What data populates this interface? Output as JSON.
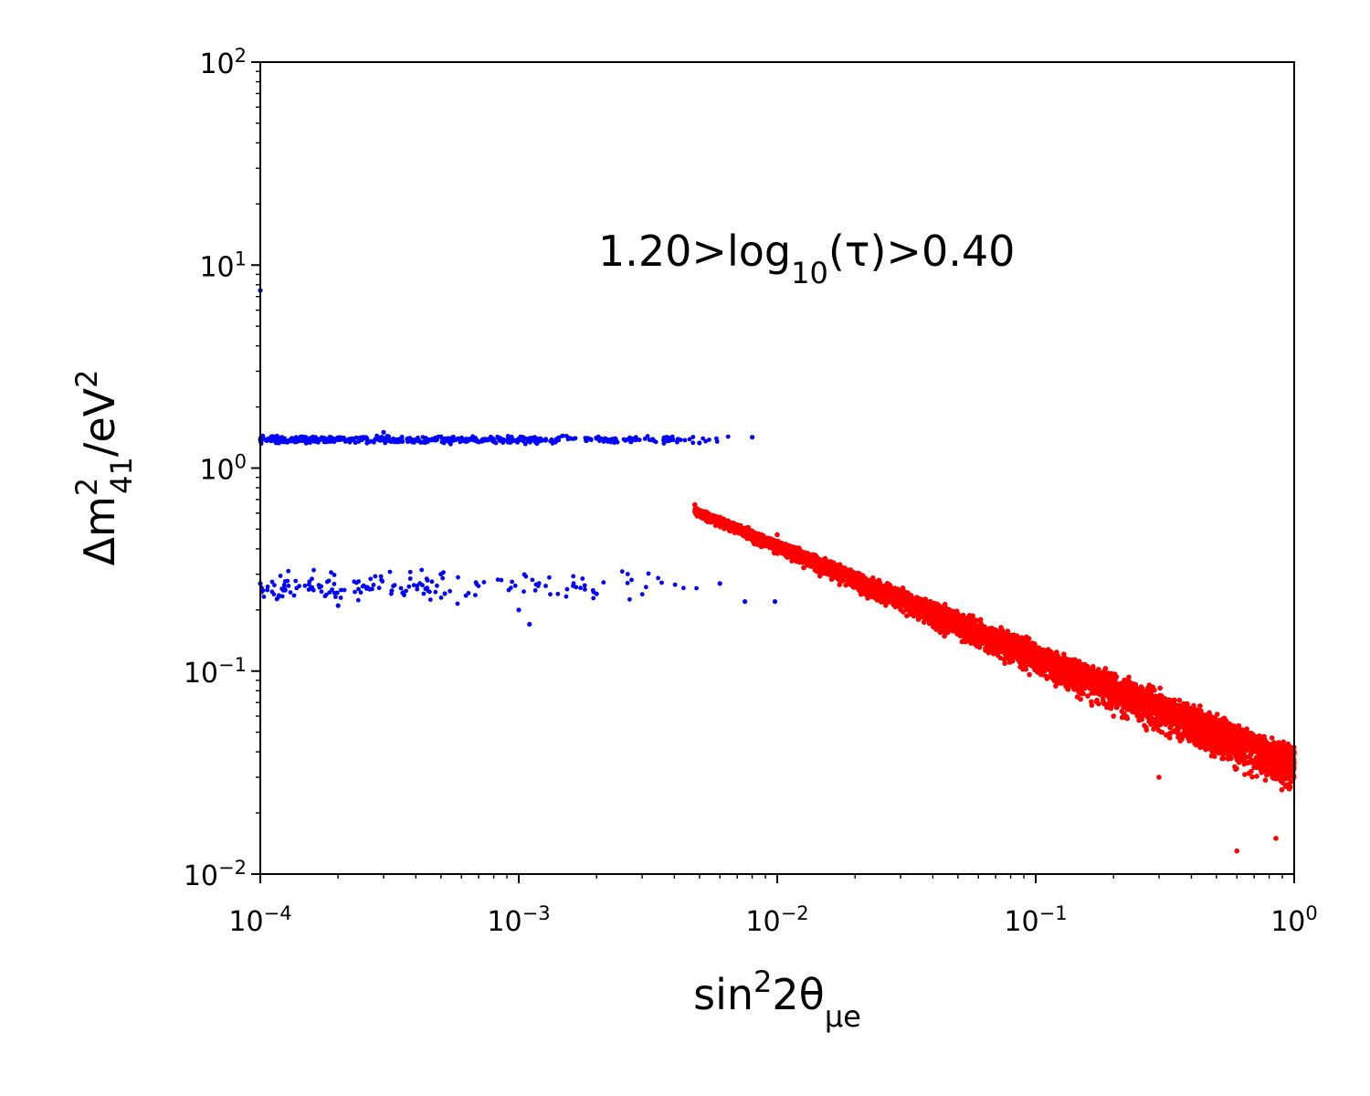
{
  "chart_data": {
    "type": "scatter",
    "x_scale": "log",
    "y_scale": "log",
    "xlim": [
      0.0001,
      1
    ],
    "ylim": [
      0.01,
      100
    ],
    "xticks": [
      {
        "base": "10",
        "exp": "−4",
        "value": 0.0001
      },
      {
        "base": "10",
        "exp": "−3",
        "value": 0.001
      },
      {
        "base": "10",
        "exp": "−2",
        "value": 0.01
      },
      {
        "base": "10",
        "exp": "−1",
        "value": 0.1
      },
      {
        "base": "10",
        "exp": "0",
        "value": 1
      }
    ],
    "yticks": [
      {
        "base": "10",
        "exp": "−2",
        "value": 0.01
      },
      {
        "base": "10",
        "exp": "−1",
        "value": 0.1
      },
      {
        "base": "10",
        "exp": "0",
        "value": 1
      },
      {
        "base": "10",
        "exp": "1",
        "value": 10
      },
      {
        "base": "10",
        "exp": "2",
        "value": 100
      }
    ],
    "xlabel": {
      "main": "sin",
      "sup": "2",
      "rest": "2θ",
      "sub": "μe"
    },
    "ylabel": {
      "pre": "Δm",
      "sup": "2",
      "sub": "41",
      "mid": "/eV",
      "sup2": "2"
    },
    "annotation": {
      "pre": "1.20>log",
      "sub": "10",
      "post": "(τ)>0.40"
    },
    "grid": false,
    "legend": "none",
    "series": [
      {
        "color": "#0000ff",
        "cluster_bands": [
          {
            "x_range": [
              0.0001,
              0.008
            ],
            "y_center": 1.38,
            "y_spread": 0.06
          },
          {
            "x_range": [
              0.0001,
              0.01
            ],
            "y_center": 0.26,
            "y_spread": 0.12
          }
        ],
        "points": [
          [
            0.0001,
            7.5
          ],
          [
            0.0001,
            1.38
          ],
          [
            0.00015,
            1.42
          ],
          [
            0.0003,
            1.5
          ],
          [
            0.0008,
            1.35
          ],
          [
            0.002,
            1.4
          ],
          [
            0.005,
            1.33
          ],
          [
            0.008,
            1.42
          ],
          [
            0.0001,
            0.27
          ],
          [
            0.0002,
            0.21
          ],
          [
            0.0005,
            0.3
          ],
          [
            0.001,
            0.2
          ],
          [
            0.0011,
            0.17
          ],
          [
            0.002,
            0.24
          ],
          [
            0.006,
            0.27
          ],
          [
            0.0075,
            0.22
          ],
          [
            0.0098,
            0.22
          ]
        ]
      },
      {
        "color": "#ff0000",
        "trend": {
          "x_range": [
            0.0048,
            1
          ],
          "y_at_start": 0.62,
          "y_at_end": 0.035,
          "log_spread_start": 0.05,
          "log_spread_end": 0.3
        },
        "points": [
          [
            0.0048,
            0.66
          ],
          [
            0.01,
            0.47
          ],
          [
            0.03,
            0.23
          ],
          [
            0.1,
            0.11
          ],
          [
            0.2,
            0.06
          ],
          [
            0.3,
            0.03
          ],
          [
            0.6,
            0.013
          ],
          [
            0.85,
            0.015
          ],
          [
            1.0,
            0.04
          ]
        ]
      }
    ]
  }
}
